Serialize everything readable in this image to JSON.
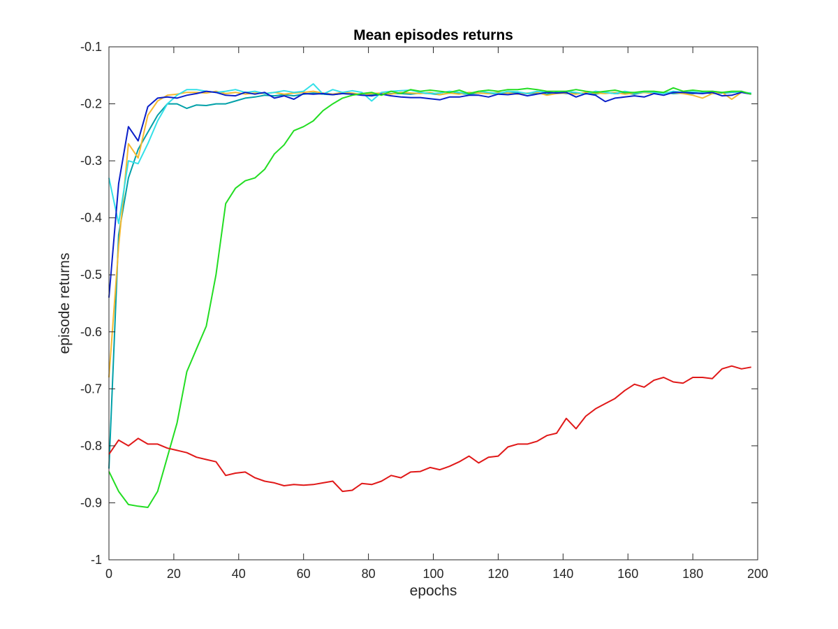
{
  "chart_data": {
    "type": "line",
    "title": "Mean episodes returns",
    "xlabel": "epochs",
    "ylabel": "episode returns",
    "xlim": [
      0,
      200
    ],
    "ylim": [
      -1,
      -0.1
    ],
    "xticks": [
      0,
      20,
      40,
      60,
      80,
      100,
      120,
      140,
      160,
      180,
      200
    ],
    "yticks": [
      -1,
      -0.9,
      -0.8,
      -0.7,
      -0.6,
      -0.5,
      -0.4,
      -0.3,
      -0.2,
      -0.1
    ],
    "xtick_labels": [
      "0",
      "20",
      "40",
      "60",
      "80",
      "100",
      "120",
      "140",
      "160",
      "180",
      "200"
    ],
    "ytick_labels": [
      "-1",
      "-0.9",
      "-0.8",
      "-0.7",
      "-0.6",
      "-0.5",
      "-0.4",
      "-0.3",
      "-0.2",
      "-0.1"
    ],
    "grid": false,
    "series": [
      {
        "color": "#00a0a8",
        "x": [
          0,
          3,
          6,
          9,
          12,
          15,
          18,
          21,
          24,
          27,
          30,
          33,
          36,
          39,
          42,
          45,
          48,
          51,
          54,
          57,
          60,
          63,
          66,
          69,
          72,
          75,
          78,
          81,
          84,
          87,
          90,
          93,
          96,
          99,
          102,
          105,
          108,
          111,
          114,
          117,
          120,
          123,
          126,
          129,
          132,
          135,
          138,
          141,
          144,
          147,
          150,
          153,
          156,
          159,
          162,
          165,
          168,
          171,
          174,
          177,
          180,
          183,
          186,
          189,
          192,
          195,
          198
        ],
        "y": [
          -0.84,
          -0.43,
          -0.33,
          -0.28,
          -0.25,
          -0.22,
          -0.2,
          -0.2,
          -0.208,
          -0.202,
          -0.203,
          -0.2,
          -0.2,
          -0.195,
          -0.19,
          -0.188,
          -0.185,
          -0.186,
          -0.184,
          -0.186,
          -0.183,
          -0.181,
          -0.183,
          -0.184,
          -0.182,
          -0.183,
          -0.183,
          -0.184,
          -0.183,
          -0.182,
          -0.182,
          -0.183,
          -0.181,
          -0.182,
          -0.184,
          -0.181,
          -0.182,
          -0.183,
          -0.181,
          -0.182,
          -0.182,
          -0.181,
          -0.181,
          -0.182,
          -0.181,
          -0.183,
          -0.18,
          -0.182,
          -0.181,
          -0.182,
          -0.183,
          -0.18,
          -0.182,
          -0.181,
          -0.183,
          -0.18,
          -0.181,
          -0.18,
          -0.182,
          -0.181,
          -0.182,
          -0.18,
          -0.182,
          -0.181,
          -0.18,
          -0.179,
          -0.182
        ]
      },
      {
        "color": "#f5b930",
        "x": [
          0,
          3,
          6,
          9,
          12,
          15,
          18,
          21,
          24,
          27,
          30,
          33,
          36,
          39,
          42,
          45,
          48,
          51,
          54,
          57,
          60,
          63,
          66,
          69,
          72,
          75,
          78,
          81,
          84,
          87,
          90,
          93,
          96,
          99,
          102,
          105,
          108,
          111,
          114,
          117,
          120,
          123,
          126,
          129,
          132,
          135,
          138,
          141,
          144,
          147,
          150,
          153,
          156,
          159,
          162,
          165,
          168,
          171,
          174,
          177,
          180,
          183,
          186,
          189,
          192,
          195,
          198
        ],
        "y": [
          -0.68,
          -0.45,
          -0.27,
          -0.295,
          -0.22,
          -0.195,
          -0.185,
          -0.183,
          -0.18,
          -0.18,
          -0.181,
          -0.178,
          -0.182,
          -0.18,
          -0.183,
          -0.181,
          -0.182,
          -0.18,
          -0.183,
          -0.181,
          -0.18,
          -0.178,
          -0.181,
          -0.183,
          -0.18,
          -0.181,
          -0.184,
          -0.182,
          -0.181,
          -0.183,
          -0.18,
          -0.181,
          -0.182,
          -0.18,
          -0.184,
          -0.181,
          -0.183,
          -0.18,
          -0.181,
          -0.182,
          -0.18,
          -0.181,
          -0.183,
          -0.181,
          -0.18,
          -0.185,
          -0.182,
          -0.181,
          -0.183,
          -0.18,
          -0.181,
          -0.182,
          -0.18,
          -0.183,
          -0.181,
          -0.18,
          -0.182,
          -0.18,
          -0.18,
          -0.182,
          -0.185,
          -0.19,
          -0.182,
          -0.18,
          -0.192,
          -0.18,
          -0.183
        ]
      },
      {
        "color": "#33e0e8",
        "x": [
          0,
          3,
          6,
          9,
          12,
          15,
          18,
          21,
          24,
          27,
          30,
          33,
          36,
          39,
          42,
          45,
          48,
          51,
          54,
          57,
          60,
          63,
          66,
          69,
          72,
          75,
          78,
          81,
          84,
          87,
          90,
          93,
          96,
          99,
          102,
          105,
          108,
          111,
          114,
          117,
          120,
          123,
          126,
          129,
          132,
          135,
          138,
          141,
          144,
          147,
          150,
          153,
          156,
          159,
          162,
          165,
          168,
          171,
          174,
          177,
          180,
          183,
          186,
          189,
          192,
          195,
          198
        ],
        "y": [
          -0.33,
          -0.41,
          -0.3,
          -0.305,
          -0.27,
          -0.23,
          -0.2,
          -0.185,
          -0.175,
          -0.175,
          -0.178,
          -0.18,
          -0.178,
          -0.175,
          -0.18,
          -0.178,
          -0.182,
          -0.18,
          -0.177,
          -0.18,
          -0.178,
          -0.165,
          -0.183,
          -0.175,
          -0.18,
          -0.177,
          -0.18,
          -0.195,
          -0.18,
          -0.178,
          -0.177,
          -0.176,
          -0.18,
          -0.182,
          -0.181,
          -0.178,
          -0.18,
          -0.182,
          -0.178,
          -0.18,
          -0.182,
          -0.178,
          -0.179,
          -0.182,
          -0.178,
          -0.18,
          -0.181,
          -0.178,
          -0.18,
          -0.183,
          -0.178,
          -0.18,
          -0.182,
          -0.178,
          -0.181,
          -0.179,
          -0.18,
          -0.182,
          -0.178,
          -0.18,
          -0.179,
          -0.181,
          -0.178,
          -0.18,
          -0.179,
          -0.18,
          -0.181
        ]
      },
      {
        "color": "#0a1fc8",
        "x": [
          0,
          3,
          6,
          9,
          12,
          15,
          18,
          21,
          24,
          27,
          30,
          33,
          36,
          39,
          42,
          45,
          48,
          51,
          54,
          57,
          60,
          63,
          66,
          69,
          72,
          75,
          78,
          81,
          84,
          87,
          90,
          93,
          96,
          99,
          102,
          105,
          108,
          111,
          114,
          117,
          120,
          123,
          126,
          129,
          132,
          135,
          138,
          141,
          144,
          147,
          150,
          153,
          156,
          159,
          162,
          165,
          168,
          171,
          174,
          177,
          180,
          183,
          186,
          189,
          192,
          195,
          198
        ],
        "y": [
          -0.54,
          -0.34,
          -0.24,
          -0.265,
          -0.205,
          -0.19,
          -0.188,
          -0.19,
          -0.185,
          -0.182,
          -0.178,
          -0.18,
          -0.185,
          -0.186,
          -0.18,
          -0.183,
          -0.18,
          -0.19,
          -0.186,
          -0.192,
          -0.182,
          -0.183,
          -0.182,
          -0.184,
          -0.182,
          -0.183,
          -0.185,
          -0.186,
          -0.183,
          -0.186,
          -0.188,
          -0.189,
          -0.189,
          -0.191,
          -0.193,
          -0.188,
          -0.188,
          -0.185,
          -0.185,
          -0.188,
          -0.183,
          -0.184,
          -0.182,
          -0.186,
          -0.183,
          -0.18,
          -0.181,
          -0.18,
          -0.188,
          -0.182,
          -0.185,
          -0.196,
          -0.19,
          -0.188,
          -0.186,
          -0.188,
          -0.182,
          -0.185,
          -0.18,
          -0.18,
          -0.181,
          -0.182,
          -0.18,
          -0.186,
          -0.185,
          -0.18,
          -0.183
        ]
      },
      {
        "color": "#22dd22",
        "x": [
          0,
          3,
          6,
          9,
          12,
          15,
          18,
          21,
          24,
          27,
          30,
          33,
          36,
          39,
          42,
          45,
          48,
          51,
          54,
          57,
          60,
          63,
          66,
          69,
          72,
          75,
          78,
          81,
          84,
          87,
          90,
          93,
          96,
          99,
          102,
          105,
          108,
          111,
          114,
          117,
          120,
          123,
          126,
          129,
          132,
          135,
          138,
          141,
          144,
          147,
          150,
          153,
          156,
          159,
          162,
          165,
          168,
          171,
          174,
          177,
          180,
          183,
          186,
          189,
          192,
          195,
          198
        ],
        "y": [
          -0.845,
          -0.88,
          -0.903,
          -0.906,
          -0.908,
          -0.88,
          -0.82,
          -0.76,
          -0.67,
          -0.63,
          -0.59,
          -0.5,
          -0.375,
          -0.348,
          -0.335,
          -0.33,
          -0.315,
          -0.288,
          -0.272,
          -0.247,
          -0.24,
          -0.23,
          -0.212,
          -0.2,
          -0.19,
          -0.185,
          -0.182,
          -0.18,
          -0.185,
          -0.178,
          -0.182,
          -0.175,
          -0.178,
          -0.176,
          -0.178,
          -0.18,
          -0.176,
          -0.182,
          -0.178,
          -0.176,
          -0.178,
          -0.175,
          -0.175,
          -0.173,
          -0.175,
          -0.178,
          -0.178,
          -0.178,
          -0.175,
          -0.178,
          -0.18,
          -0.178,
          -0.176,
          -0.18,
          -0.18,
          -0.178,
          -0.178,
          -0.18,
          -0.172,
          -0.178,
          -0.176,
          -0.178,
          -0.178,
          -0.18,
          -0.178,
          -0.178,
          -0.183
        ]
      },
      {
        "color": "#e01818",
        "x": [
          0,
          3,
          6,
          9,
          12,
          15,
          18,
          21,
          24,
          27,
          30,
          33,
          36,
          39,
          42,
          45,
          48,
          51,
          54,
          57,
          60,
          63,
          66,
          69,
          72,
          75,
          78,
          81,
          84,
          87,
          90,
          93,
          96,
          99,
          102,
          105,
          108,
          111,
          114,
          117,
          120,
          123,
          126,
          129,
          132,
          135,
          138,
          141,
          144,
          147,
          150,
          153,
          156,
          159,
          162,
          165,
          168,
          171,
          174,
          177,
          180,
          183,
          186,
          189,
          192,
          195,
          198
        ],
        "y": [
          -0.815,
          -0.79,
          -0.8,
          -0.787,
          -0.797,
          -0.797,
          -0.804,
          -0.808,
          -0.812,
          -0.82,
          -0.824,
          -0.828,
          -0.852,
          -0.848,
          -0.846,
          -0.856,
          -0.862,
          -0.865,
          -0.87,
          -0.868,
          -0.869,
          -0.868,
          -0.865,
          -0.862,
          -0.88,
          -0.878,
          -0.866,
          -0.868,
          -0.862,
          -0.852,
          -0.856,
          -0.846,
          -0.845,
          -0.838,
          -0.842,
          -0.836,
          -0.828,
          -0.818,
          -0.83,
          -0.82,
          -0.818,
          -0.802,
          -0.797,
          -0.797,
          -0.792,
          -0.782,
          -0.778,
          -0.752,
          -0.77,
          -0.748,
          -0.735,
          -0.726,
          -0.717,
          -0.703,
          -0.692,
          -0.697,
          -0.685,
          -0.68,
          -0.688,
          -0.69,
          -0.68,
          -0.68,
          -0.682,
          -0.665,
          -0.66,
          -0.665,
          -0.662
        ]
      }
    ]
  }
}
